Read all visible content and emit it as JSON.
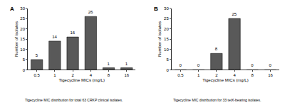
{
  "chart_data": [
    {
      "type": "bar",
      "title": "A",
      "caption": "Tigecycline MIC distribution for total 63 CRKP clinical isolates.",
      "x_label": "Tigecycline MICs (mg/L)",
      "y_label": "Number of isolates",
      "categories": [
        "0.5",
        "1",
        "2",
        "4",
        "8",
        "16"
      ],
      "values": [
        5,
        14,
        16,
        26,
        1,
        1
      ],
      "color": "#595959",
      "ylim": [
        0,
        30
      ],
      "yticks": [
        0,
        5,
        10,
        15,
        20,
        25,
        30
      ],
      "grid": false,
      "data_labels": true
    },
    {
      "type": "bar",
      "title": "B",
      "caption": "Tigecycline MIC distribution for 33 tetX-bearing isolates.",
      "x_label": "Tigecycline MICs (mg/L)",
      "y_label": "Number of isolates",
      "categories": [
        "0.5",
        "1",
        "2",
        "4",
        "8",
        "16"
      ],
      "values": [
        0,
        0,
        8,
        25,
        0,
        0
      ],
      "color": "#595959",
      "ylim": [
        0,
        30
      ],
      "yticks": [
        0,
        5,
        10,
        15,
        20,
        25,
        30
      ],
      "grid": false,
      "data_labels": true
    }
  ]
}
